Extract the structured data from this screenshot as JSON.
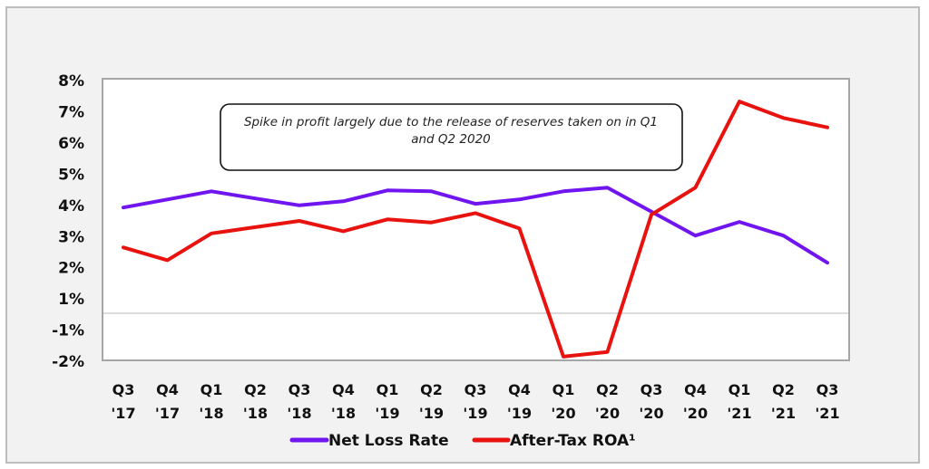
{
  "chart_data": {
    "type": "line",
    "title": "",
    "xlabel": "",
    "ylabel": "",
    "categories": [
      [
        "Q3",
        "'17"
      ],
      [
        "Q4",
        "'17"
      ],
      [
        "Q1",
        "'18"
      ],
      [
        "Q2",
        "'18"
      ],
      [
        "Q3",
        "'18"
      ],
      [
        "Q4",
        "'18"
      ],
      [
        "Q1",
        "'19"
      ],
      [
        "Q2",
        "'19"
      ],
      [
        "Q3",
        "'19"
      ],
      [
        "Q4",
        "'19"
      ],
      [
        "Q1",
        "'20"
      ],
      [
        "Q2",
        "'20"
      ],
      [
        "Q3",
        "'20"
      ],
      [
        "Q4",
        "'20"
      ],
      [
        "Q1",
        "'21"
      ],
      [
        "Q2",
        "'21"
      ],
      [
        "Q3",
        "'21"
      ]
    ],
    "y_tick_labels": [
      "8%",
      "7%",
      "6%",
      "5%",
      "4%",
      "3%",
      "2%",
      "1%",
      "-1%",
      "-2%"
    ],
    "y_tick_values": [
      8,
      7,
      6,
      5,
      4,
      3,
      2,
      1,
      -1,
      -2
    ],
    "ylim": [
      -2,
      8
    ],
    "zero_line": true,
    "grid": false,
    "series": [
      {
        "name": "Net Loss Rate",
        "color": "#7015f0",
        "values": [
          3.93,
          4.19,
          4.45,
          4.22,
          4.0,
          4.13,
          4.48,
          4.45,
          4.05,
          4.19,
          4.45,
          4.57,
          3.8,
          3.03,
          3.47,
          3.03,
          2.16
        ]
      },
      {
        "name": "After-Tax ROA¹",
        "color": "#e8120f",
        "values": [
          2.65,
          2.24,
          3.1,
          3.3,
          3.5,
          3.17,
          3.55,
          3.45,
          3.75,
          3.26,
          -1.85,
          -1.7,
          3.7,
          4.57,
          7.33,
          6.8,
          6.5
        ]
      }
    ],
    "legend_position": "bottom",
    "annotation": {
      "lines": [
        "Spike in profit largely due to the release of reserves taken on in Q1",
        "and Q2 2020"
      ]
    }
  }
}
